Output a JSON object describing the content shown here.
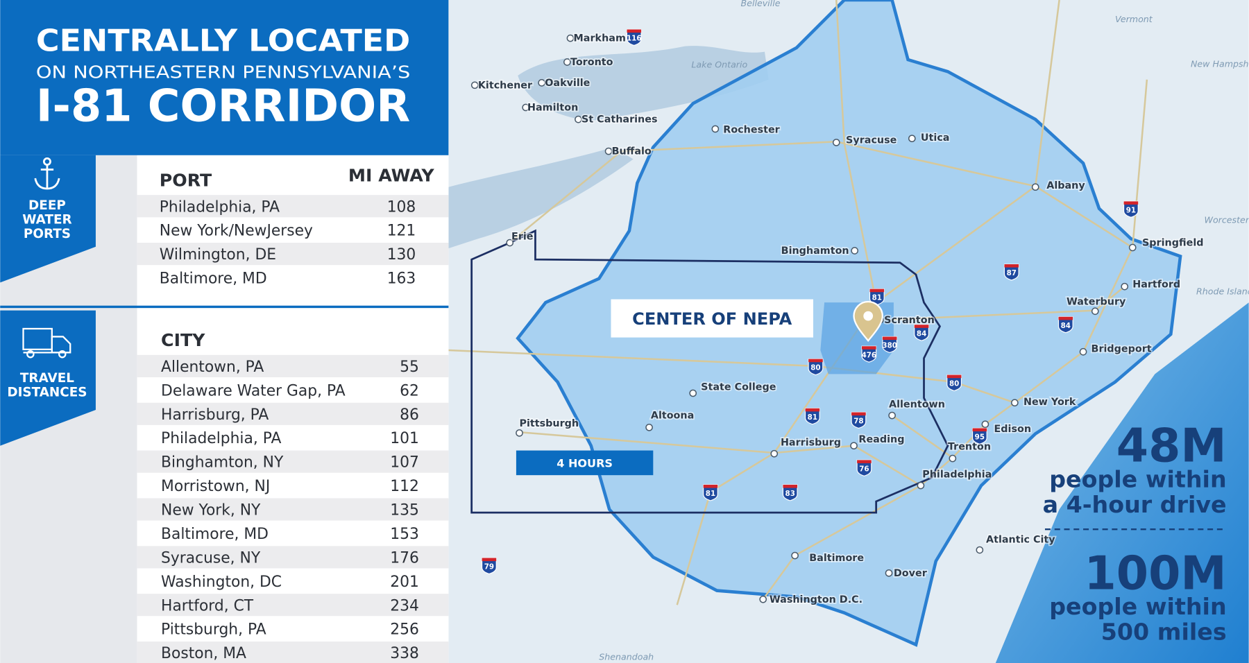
{
  "header": {
    "line1": "CENTRALLY LOCATED",
    "line2": "ON NORTHEASTERN PENNSYLVANIA’S",
    "line3": "I-81 CORRIDOR"
  },
  "ports": {
    "side_label": [
      "DEEP",
      "WATER",
      "PORTS"
    ],
    "columns": [
      "PORT",
      "MI AWAY"
    ],
    "rows": [
      [
        "Philadelphia, PA",
        108
      ],
      [
        "New York/NewJersey",
        121
      ],
      [
        "Wilmington, DE",
        130
      ],
      [
        "Baltimore, MD",
        163
      ]
    ]
  },
  "cities": {
    "side_label": [
      "TRAVEL",
      "DISTANCES"
    ],
    "columns": [
      "CITY"
    ],
    "rows": [
      [
        "Allentown, PA",
        55
      ],
      [
        "Delaware Water Gap, PA",
        62
      ],
      [
        "Harrisburg, PA",
        86
      ],
      [
        "Philadelphia, PA",
        101
      ],
      [
        "Binghamton, NY",
        107
      ],
      [
        "Morristown, NJ",
        112
      ],
      [
        "New York, NY",
        135
      ],
      [
        "Baltimore, MD",
        153
      ],
      [
        "Syracuse, NY",
        176
      ],
      [
        "Washington, DC",
        201
      ],
      [
        "Hartford, CT",
        234
      ],
      [
        "Pittsburgh, PA",
        256
      ],
      [
        "Boston, MA",
        338
      ]
    ]
  },
  "map": {
    "center_label": "CENTER OF NEPA",
    "drive_label": "4 HOURS",
    "places": [
      "Rochester",
      "Syracuse",
      "Utica",
      "Albany",
      "Binghamton",
      "Scranton",
      "State College",
      "Altoona",
      "Pittsburgh",
      "Harrisburg",
      "Reading",
      "Allentown",
      "Trenton",
      "Philadelphia",
      "New York",
      "Edison",
      "Baltimore",
      "Dover",
      "Washington D.C.",
      "Atlantic City",
      "Bridgeport",
      "Waterbury",
      "Hartford",
      "Springfield",
      "Toronto",
      "Markham",
      "Oakville",
      "Kitchener",
      "Hamilton",
      "St Catharines",
      "Buffalo",
      "Erie"
    ],
    "regions": [
      "Lake Ontario",
      "Belleville",
      "Vermont",
      "New Hampshire",
      "Worcester",
      "Rhode Island",
      "Shenandoah"
    ],
    "highways": [
      "81",
      "84",
      "380",
      "476",
      "80",
      "80",
      "81",
      "78",
      "76",
      "81",
      "83",
      "95",
      "87",
      "84",
      "91",
      "116",
      "79"
    ]
  },
  "stats": [
    {
      "value": "48M",
      "lines": [
        "people within",
        "a 4-hour drive"
      ]
    },
    {
      "value": "100M",
      "lines": [
        "people within",
        "500 miles"
      ]
    }
  ]
}
